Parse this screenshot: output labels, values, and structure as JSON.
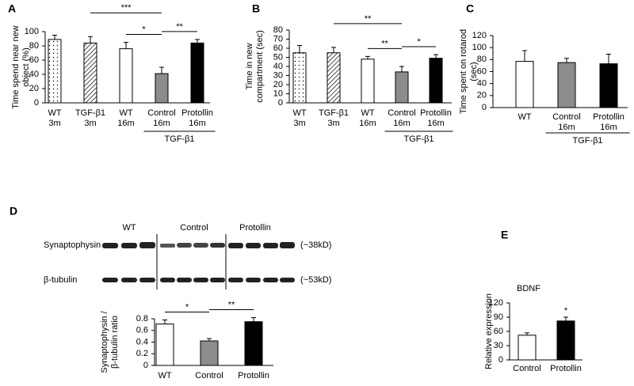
{
  "chart_data": [
    {
      "type": "bar",
      "panel_label": "A",
      "ylabel": [
        "Time spend near new",
        "object (%)"
      ],
      "categories": [
        "WT",
        "TGF-β1",
        "WT",
        "Control",
        "Protollin"
      ],
      "category_sublabels": [
        "3m",
        "3m",
        "16m",
        "16m",
        "16m"
      ],
      "values": [
        89,
        84,
        76,
        41,
        84
      ],
      "errors": [
        6,
        9,
        9,
        9,
        5
      ],
      "fills": [
        "dotted",
        "diagonal-hatch",
        "#ffffff",
        "#8c8c8c",
        "#000000"
      ],
      "ylim": [
        0,
        100
      ],
      "yticks": [
        0,
        20,
        40,
        60,
        80,
        100
      ],
      "significance": [
        {
          "label": "***",
          "from": 1,
          "to": 3
        },
        {
          "label": "*",
          "from": 2,
          "to": 3
        },
        {
          "label": "**",
          "from": 3,
          "to": 4
        }
      ],
      "group_label": {
        "text": "TGF-β1",
        "from": 3,
        "to": 4
      }
    },
    {
      "type": "bar",
      "panel_label": "B",
      "ylabel": [
        "Time in new",
        "compartment (sec)"
      ],
      "categories": [
        "WT",
        "TGF-β1",
        "WT",
        "Control",
        "Protollin"
      ],
      "category_sublabels": [
        "3m",
        "3m",
        "16m",
        "16m",
        "16m"
      ],
      "values": [
        55,
        55,
        48,
        34,
        49
      ],
      "errors": [
        8,
        6,
        3,
        6,
        4
      ],
      "fills": [
        "dotted",
        "diagonal-hatch",
        "#ffffff",
        "#8c8c8c",
        "#000000"
      ],
      "ylim": [
        0,
        80
      ],
      "yticks": [
        0,
        10,
        20,
        30,
        40,
        50,
        60,
        70,
        80
      ],
      "significance": [
        {
          "label": "**",
          "from": 1,
          "to": 3
        },
        {
          "label": "**",
          "from": 2,
          "to": 3
        },
        {
          "label": "*",
          "from": 3,
          "to": 4
        }
      ],
      "group_label": {
        "text": "TGF-β1",
        "from": 3,
        "to": 4
      }
    },
    {
      "type": "bar",
      "panel_label": "C",
      "ylabel": [
        "Time spent on rotarod",
        "(sec)"
      ],
      "categories": [
        "WT",
        "Control",
        "Protollin"
      ],
      "category_sublabels": [
        null,
        "16m",
        "16m"
      ],
      "values": [
        77,
        75,
        73
      ],
      "errors": [
        18,
        7,
        16
      ],
      "fills": [
        "#ffffff",
        "#8c8c8c",
        "#000000"
      ],
      "ylim": [
        0,
        120
      ],
      "yticks": [
        0,
        20,
        40,
        60,
        80,
        100,
        120
      ],
      "group_label": {
        "text": "TGF-β1",
        "from": 1,
        "to": 2
      }
    },
    {
      "type": "bar",
      "panel_label": "D",
      "ylabel": [
        "Synaptophysin /",
        "β-tubulin ratio"
      ],
      "categories": [
        "WT",
        "Control",
        "Protollin"
      ],
      "values": [
        0.71,
        0.42,
        0.75
      ],
      "errors": [
        0.07,
        0.04,
        0.07
      ],
      "fills": [
        "#ffffff",
        "#8c8c8c",
        "#000000"
      ],
      "ylim": [
        0,
        0.8
      ],
      "yticks": [
        0,
        0.2,
        0.4,
        0.6,
        0.8
      ],
      "significance": [
        {
          "label": "*",
          "from": 0,
          "to": 1
        },
        {
          "label": "**",
          "from": 1,
          "to": 2
        }
      ],
      "blot": {
        "lane_groups": [
          "WT",
          "Control",
          "Protollin"
        ],
        "rows": [
          {
            "protein": "Synaptophysin",
            "size": "(~38kD)"
          },
          {
            "protein": "β-tubulin",
            "size": "(~53kD)"
          }
        ]
      }
    },
    {
      "type": "bar",
      "panel_label": "E",
      "title": "BDNF",
      "ylabel": [
        "Relative expression"
      ],
      "categories": [
        "Control",
        "Protollin"
      ],
      "values": [
        52,
        82
      ],
      "errors": [
        5,
        8
      ],
      "fills": [
        "#ffffff",
        "#000000"
      ],
      "ylim": [
        0,
        120
      ],
      "yticks": [
        0,
        30,
        60,
        90,
        120
      ],
      "significance": [
        {
          "label": "*",
          "from": 1,
          "to": 1
        }
      ]
    }
  ]
}
